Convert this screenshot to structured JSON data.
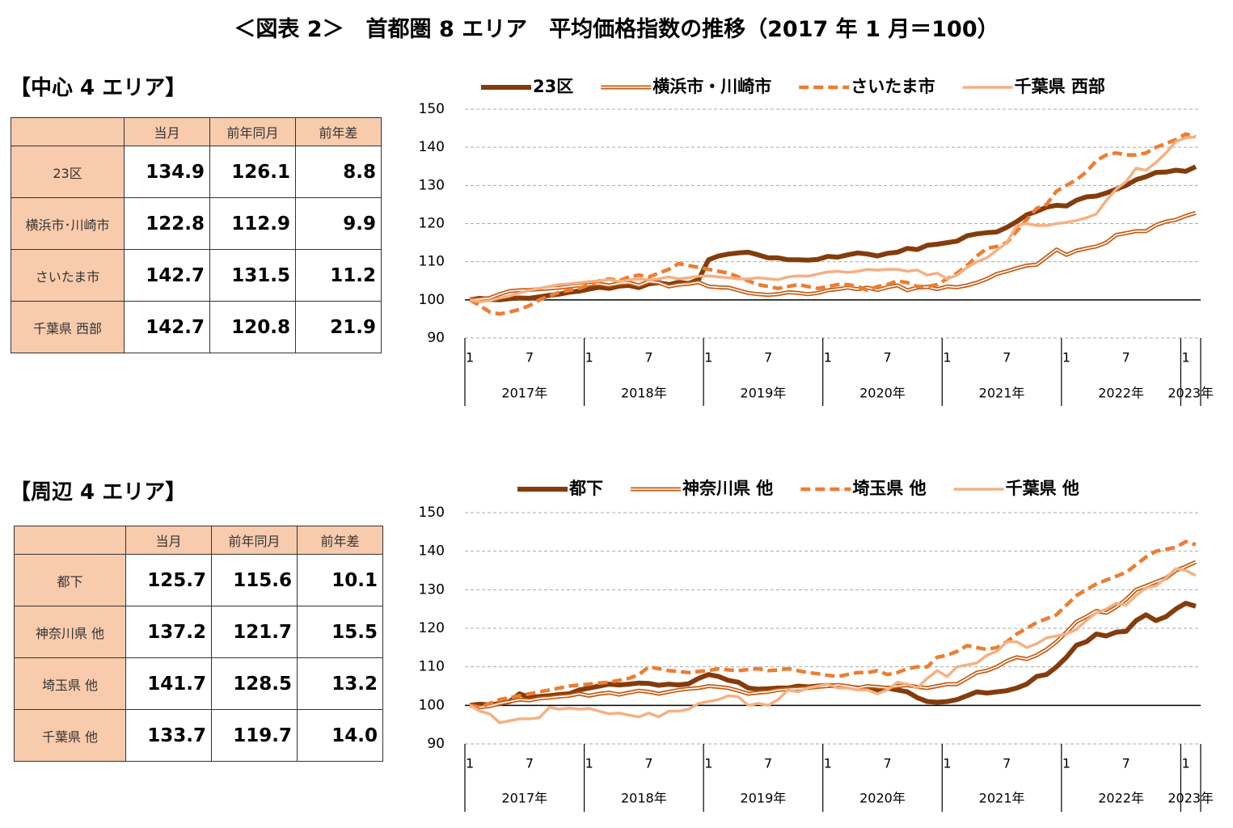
{
  "title": "＜図表 2＞　首都圏 8 エリア　平均価格指数の推移（2017 年 1 月＝100）",
  "sections": [
    {
      "label": "【中心 4 エリア】",
      "table": {
        "header": [
          "当月",
          "前年同月",
          "前年差"
        ],
        "rows": [
          [
            "23区",
            "134.9",
            "126.1",
            "8.8"
          ],
          [
            "横浜市･川崎市",
            "122.8",
            "112.9",
            "9.9"
          ],
          [
            "さいたま市",
            "142.7",
            "131.5",
            "11.2"
          ],
          [
            "千葉県 西部",
            "142.7",
            "120.8",
            "21.9"
          ]
        ]
      }
    },
    {
      "label": "【周辺 4 エリア】",
      "table": {
        "header": [
          "当月",
          "前年同月",
          "前年差"
        ],
        "rows": [
          [
            "都下",
            "125.7",
            "115.6",
            "10.1"
          ],
          [
            "神奈川県 他",
            "137.2",
            "121.7",
            "15.5"
          ],
          [
            "埼玉県 他",
            "141.7",
            "128.5",
            "13.2"
          ],
          [
            "千葉県 他",
            "133.7",
            "119.7",
            "14.0"
          ]
        ]
      }
    }
  ],
  "chart_data": [
    {
      "type": "line",
      "ylim": [
        90,
        150
      ],
      "yticks": [
        90,
        100,
        110,
        120,
        130,
        140,
        150
      ],
      "grid": true,
      "x_axis_crosses": 100,
      "categories": [
        "1",
        null,
        null,
        null,
        null,
        null,
        "7",
        null,
        null,
        null,
        null,
        null,
        "1",
        null,
        null,
        null,
        null,
        null,
        "7",
        null,
        null,
        null,
        null,
        null,
        "1",
        null,
        null,
        null,
        null,
        null,
        "7",
        null,
        null,
        null,
        null,
        null,
        "1",
        null,
        null,
        null,
        null,
        null,
        "7",
        null,
        null,
        null,
        null,
        null,
        "1",
        null,
        null,
        null,
        null,
        null,
        "7",
        null,
        null,
        null,
        null,
        null,
        "1",
        null,
        null,
        null,
        null,
        null,
        "7",
        null,
        null,
        null,
        null,
        null,
        "1",
        null
      ],
      "year_labels": [
        "2017年",
        "2018年",
        "2019年",
        "2020年",
        "2021年",
        "2022年",
        "2023年"
      ],
      "legend": "top",
      "series": [
        {
          "name": "23区",
          "color": "#843c0c",
          "style": "solid",
          "width": 6,
          "values": [
            100,
            100.4,
            100.1,
            100.0,
            100.3,
            100.5,
            100.4,
            100.8,
            101.2,
            101.5,
            102.0,
            102.3,
            102.8,
            103.3,
            103.0,
            103.6,
            103.8,
            103.2,
            104.2,
            104.5,
            104.0,
            104.6,
            104.3,
            105.3,
            110.5,
            111.5,
            112.0,
            112.3,
            112.5,
            111.8,
            111.0,
            111.0,
            110.5,
            110.5,
            110.4,
            110.6,
            111.4,
            111.2,
            111.8,
            112.3,
            112.0,
            111.5,
            112.2,
            112.5,
            113.5,
            113.2,
            114.3,
            114.6,
            115.0,
            115.4,
            116.8,
            117.3,
            117.6,
            117.8,
            119.0,
            120.5,
            122.3,
            123.2,
            124.3,
            124.8,
            124.6,
            126.1,
            127.0,
            127.2,
            128.0,
            129.0,
            130.0,
            131.5,
            132.3,
            133.4,
            133.5,
            134.0,
            133.7,
            134.9
          ]
        },
        {
          "name": "横浜市・川崎市",
          "color": "#c55a11",
          "style": "double",
          "width": 5,
          "values": [
            100,
            100.2,
            100.5,
            101.5,
            102.3,
            102.5,
            102.6,
            102.8,
            103,
            103.2,
            103.5,
            103.8,
            104,
            104.2,
            103.8,
            104.3,
            104.5,
            103.8,
            104.8,
            104.5,
            103.5,
            104,
            104.2,
            104.6,
            103.5,
            103.3,
            103.2,
            102.5,
            101.8,
            101.5,
            101.3,
            101.5,
            102,
            101.8,
            101.5,
            101.8,
            102.5,
            102.8,
            103.2,
            102.8,
            103.2,
            102.6,
            103.3,
            103.8,
            102.5,
            103.2,
            103.4,
            102.8,
            103.5,
            103.3,
            103.8,
            104.5,
            105.5,
            106.8,
            107.5,
            108.3,
            109,
            109.2,
            111.2,
            113.2,
            111.8,
            112.9,
            113.5,
            114.0,
            115.0,
            117.0,
            117.5,
            118.0,
            118.0,
            119.6,
            120.5,
            121.0,
            122.0,
            122.8
          ]
        },
        {
          "name": "さいたま市",
          "color": "#ed7d31",
          "style": "dashed",
          "width": 4.5,
          "values": [
            100,
            98.5,
            96.8,
            96.3,
            96.8,
            97.5,
            98.5,
            100,
            101,
            102,
            102.5,
            103,
            104,
            105,
            105.5,
            105,
            106,
            106.5,
            106,
            107,
            108,
            109.5,
            109,
            108.5,
            108,
            107.5,
            107,
            106,
            105,
            104,
            103.5,
            103,
            103.5,
            104,
            103.5,
            103,
            103.5,
            104,
            104,
            103.5,
            102.5,
            103.5,
            104,
            105,
            104.5,
            103.5,
            103.5,
            104,
            105.5,
            107,
            109,
            111.5,
            113.5,
            114,
            115,
            118,
            121,
            124,
            125,
            128.5,
            130,
            131.5,
            133.5,
            136.5,
            138,
            138.5,
            138,
            138,
            138.5,
            140,
            141,
            142,
            143.5,
            142.7
          ]
        },
        {
          "name": "千葉県 西部",
          "color": "#f4b183",
          "style": "solid",
          "width": 3.5,
          "values": [
            100,
            99.5,
            99.8,
            100.5,
            101,
            101.8,
            102.5,
            103,
            103.5,
            104,
            104.2,
            104.5,
            104.8,
            105,
            105.3,
            104.8,
            105.2,
            105.5,
            105.2,
            105.5,
            106,
            105.5,
            105.8,
            106.2,
            106.3,
            106,
            105.8,
            105.5,
            105.5,
            105.8,
            105.5,
            105.3,
            106,
            106.3,
            106.2,
            106.8,
            107.3,
            107.5,
            107.2,
            107.5,
            108,
            107.8,
            108,
            108,
            107.5,
            107.8,
            106.5,
            107,
            105.5,
            106.5,
            108.5,
            110,
            111,
            113,
            115,
            119.5,
            120,
            119.5,
            119.5,
            120,
            120.3,
            120.8,
            121.5,
            122.5,
            126,
            129,
            131,
            134.5,
            134,
            136,
            138.5,
            141.5,
            142.5,
            142.7
          ]
        }
      ]
    },
    {
      "type": "line",
      "ylim": [
        90,
        150
      ],
      "yticks": [
        90,
        100,
        110,
        120,
        130,
        140,
        150
      ],
      "grid": true,
      "x_axis_crosses": 100,
      "categories": [
        "1",
        null,
        null,
        null,
        null,
        null,
        "7",
        null,
        null,
        null,
        null,
        null,
        "1",
        null,
        null,
        null,
        null,
        null,
        "7",
        null,
        null,
        null,
        null,
        null,
        "1",
        null,
        null,
        null,
        null,
        null,
        "7",
        null,
        null,
        null,
        null,
        null,
        "1",
        null,
        null,
        null,
        null,
        null,
        "7",
        null,
        null,
        null,
        null,
        null,
        "1",
        null,
        null,
        null,
        null,
        null,
        "7",
        null,
        null,
        null,
        null,
        null,
        "1",
        null,
        null,
        null,
        null,
        null,
        "7",
        null,
        null,
        null,
        null,
        null,
        "1",
        null
      ],
      "year_labels": [
        "2017年",
        "2018年",
        "2019年",
        "2020年",
        "2021年",
        "2022年",
        "2023年"
      ],
      "legend": "top",
      "series": [
        {
          "name": "都下",
          "color": "#843c0c",
          "style": "solid",
          "width": 6,
          "values": [
            100,
            100.3,
            100.1,
            100.5,
            101,
            103,
            102,
            102.3,
            102.5,
            102.8,
            103,
            104,
            104.5,
            105,
            105.5,
            105.3,
            105.5,
            105.8,
            105.7,
            105.2,
            105.5,
            105.3,
            105.6,
            107,
            108,
            107.5,
            106.5,
            106,
            104.5,
            104.2,
            104.3,
            104.5,
            104.5,
            105,
            104.8,
            105,
            105.2,
            105,
            104.8,
            104.5,
            104.5,
            104,
            104.5,
            104,
            103.5,
            102,
            101,
            100.8,
            101,
            101.5,
            102.5,
            103.5,
            103.2,
            103.5,
            103.8,
            104.5,
            105.5,
            107.5,
            108,
            110,
            112.5,
            115.6,
            116.5,
            118.5,
            118,
            119,
            119.2,
            122,
            123.5,
            122,
            123,
            125,
            126.5,
            125.7
          ]
        },
        {
          "name": "神奈川県 他",
          "color": "#c55a11",
          "style": "double",
          "width": 5,
          "values": [
            100,
            99.5,
            99.8,
            100.5,
            101,
            101.5,
            101.3,
            101.8,
            102,
            102.3,
            102.5,
            103,
            102.5,
            103,
            103.3,
            102.8,
            103.3,
            103.8,
            103.5,
            103,
            103.5,
            104,
            104.3,
            104.5,
            105,
            104.8,
            104.5,
            103.8,
            103,
            103.3,
            103.5,
            104,
            104.2,
            104.3,
            104.5,
            104.8,
            105,
            105.3,
            105,
            104.5,
            105,
            104.8,
            104.5,
            105,
            105.2,
            104.8,
            104.5,
            105,
            105.5,
            105.5,
            107,
            108.5,
            109,
            110,
            111.5,
            112.5,
            112,
            113,
            114.5,
            116.5,
            119,
            121.7,
            123,
            124.5,
            124,
            125.5,
            127.5,
            130,
            131,
            132,
            133,
            135,
            136,
            137.2
          ]
        },
        {
          "name": "埼玉県 他",
          "color": "#ed7d31",
          "style": "dashed",
          "width": 4.5,
          "values": [
            100,
            99.5,
            100.5,
            101.5,
            102,
            102.5,
            103,
            103.5,
            104,
            104.5,
            105,
            105.3,
            105.5,
            105.8,
            106,
            106.5,
            107,
            108,
            110,
            109.5,
            109,
            108.8,
            108.5,
            108.8,
            109,
            109.5,
            109.2,
            109,
            109.3,
            109.5,
            109,
            109.2,
            109.5,
            109,
            108.5,
            108.2,
            107.8,
            107.5,
            108,
            108.5,
            108.5,
            109,
            108,
            108.5,
            109.5,
            110,
            110,
            112.5,
            113,
            114,
            115.5,
            115,
            114.5,
            115,
            116.5,
            118.5,
            120,
            121.5,
            122.5,
            123.5,
            126,
            128.5,
            130,
            131.5,
            132.5,
            133.5,
            134.5,
            136.5,
            138.5,
            140,
            140.5,
            141,
            142.5,
            141.7
          ]
        },
        {
          "name": "千葉県 他",
          "color": "#f4b183",
          "style": "solid",
          "width": 3.5,
          "values": [
            100,
            98.5,
            97.8,
            95.5,
            96,
            96.5,
            96.5,
            96.8,
            99.5,
            99,
            99.3,
            99,
            99.2,
            98.5,
            97.8,
            98,
            97.5,
            97,
            98,
            97,
            98.5,
            98.5,
            99,
            100.5,
            101,
            101.5,
            102.5,
            102.2,
            100,
            100.5,
            100,
            101.5,
            104,
            103.5,
            104.5,
            105,
            105.5,
            104.5,
            104.5,
            104,
            104,
            103,
            104,
            106,
            105.5,
            104.5,
            107,
            109,
            107.5,
            110,
            110.5,
            111,
            113,
            114,
            116.5,
            116.5,
            115,
            116,
            117.5,
            118,
            118.5,
            119.7,
            122,
            124,
            125,
            126.5,
            126,
            128.5,
            130.5,
            131,
            133,
            135.5,
            135,
            133.7
          ]
        }
      ]
    }
  ]
}
